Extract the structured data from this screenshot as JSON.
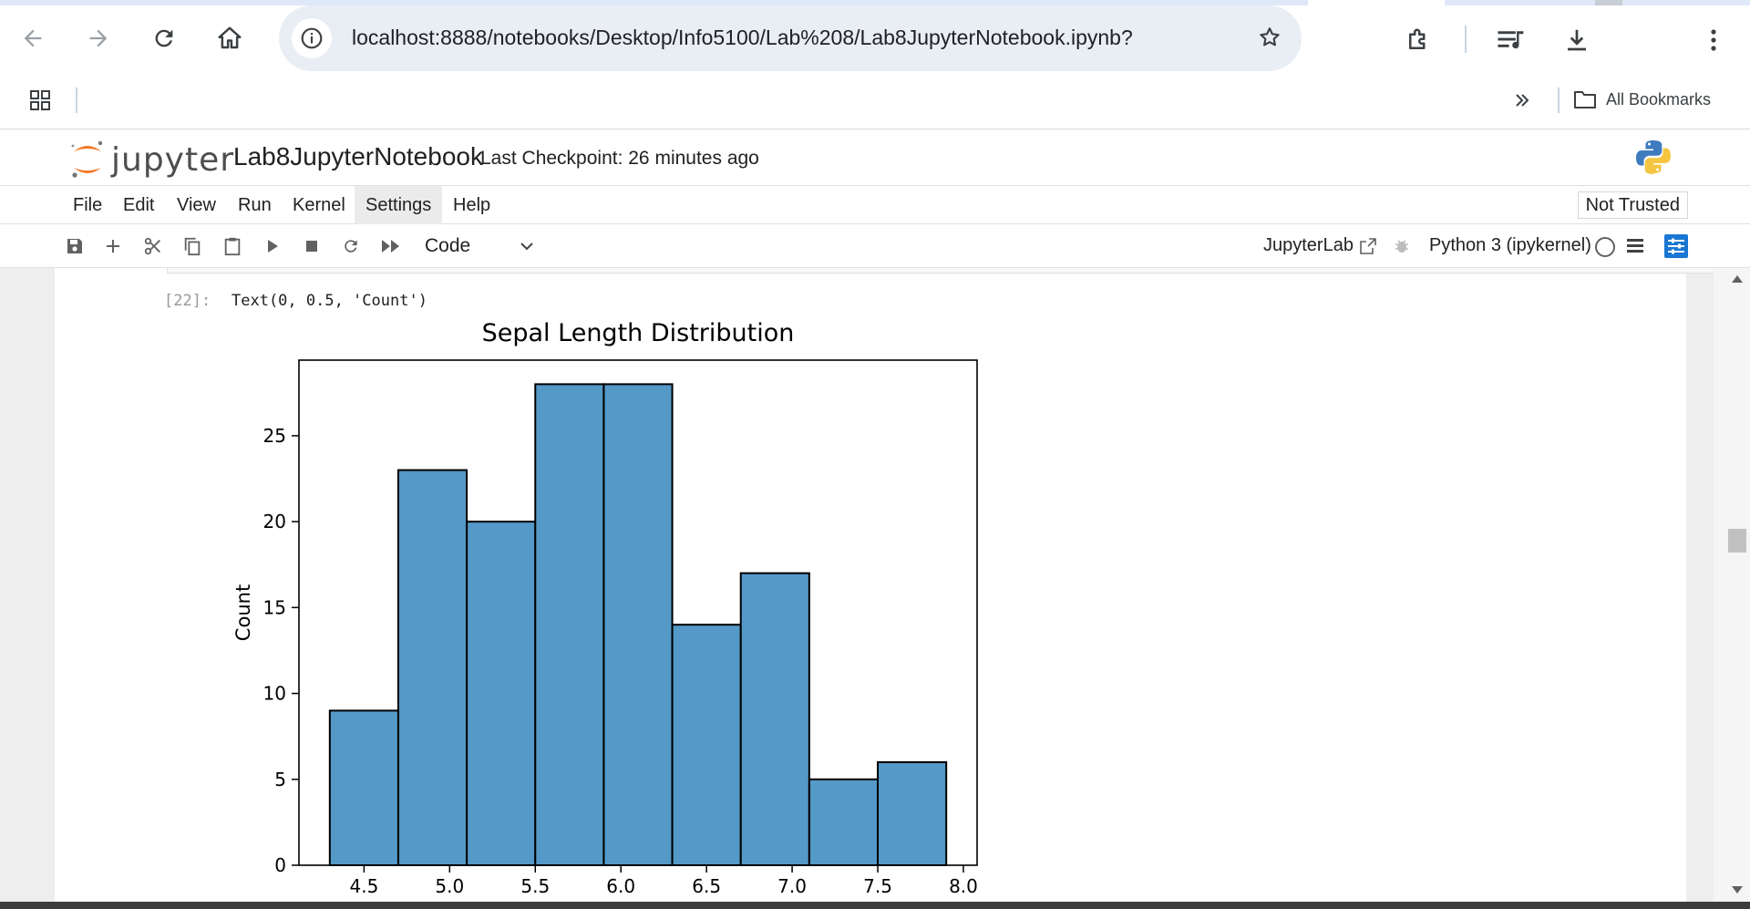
{
  "browser": {
    "url": "localhost:8888/notebooks/Desktop/Info5100/Lab%208/Lab8JupyterNotebook.ipynb?",
    "all_bookmarks_label": "All Bookmarks",
    "icons": [
      "back-icon",
      "forward-icon",
      "reload-icon",
      "home-icon",
      "site-info-icon",
      "star-icon",
      "extensions-icon",
      "reading-list-icon",
      "download-icon",
      "more-vert-icon",
      "apps-icon",
      "chevron-double-right-icon",
      "folder-icon"
    ]
  },
  "jupyter": {
    "logo_text": "jupyter",
    "notebook_title": "Lab8JupyterNotebook",
    "checkpoint": "Last Checkpoint: 26 minutes ago",
    "menu": [
      "File",
      "Edit",
      "View",
      "Run",
      "Kernel",
      "Settings",
      "Help"
    ],
    "active_menu": "Settings",
    "not_trusted": "Not Trusted",
    "cell_type": "Code",
    "jupyterlab_link": "JupyterLab",
    "kernel_name": "Python 3 (ipykernel)",
    "colors": {
      "logo_orange": "#f37726",
      "bar_fill": "#5499c7",
      "accent_blue": "#1976d2"
    }
  },
  "cell": {
    "prompt": "[22]:",
    "output_text": "Text(0, 0.5, 'Count')"
  },
  "chart_data": {
    "type": "bar",
    "title": "Sepal Length Distribution",
    "xlabel": "",
    "ylabel": "Count",
    "bins": [
      {
        "start": 4.3,
        "end": 4.7,
        "count": 9
      },
      {
        "start": 4.7,
        "end": 5.1,
        "count": 23
      },
      {
        "start": 5.1,
        "end": 5.5,
        "count": 20
      },
      {
        "start": 5.5,
        "end": 5.9,
        "count": 28
      },
      {
        "start": 5.9,
        "end": 6.3,
        "count": 28
      },
      {
        "start": 6.3,
        "end": 6.7,
        "count": 14
      },
      {
        "start": 6.7,
        "end": 7.1,
        "count": 17
      },
      {
        "start": 7.1,
        "end": 7.5,
        "count": 5
      },
      {
        "start": 7.5,
        "end": 7.9,
        "count": 6
      }
    ],
    "xlim": [
      4.12,
      8.08
    ],
    "ylim": [
      0,
      29.4
    ],
    "x_ticks": [
      "4.5",
      "5.0",
      "5.5",
      "6.0",
      "6.5",
      "7.0",
      "7.5",
      "8.0"
    ],
    "x_tick_values": [
      4.5,
      5.0,
      5.5,
      6.0,
      6.5,
      7.0,
      7.5,
      8.0
    ],
    "y_ticks": [
      "0",
      "5",
      "10",
      "15",
      "20",
      "25"
    ],
    "y_tick_values": [
      0,
      5,
      10,
      15,
      20,
      25
    ],
    "grid": false
  }
}
